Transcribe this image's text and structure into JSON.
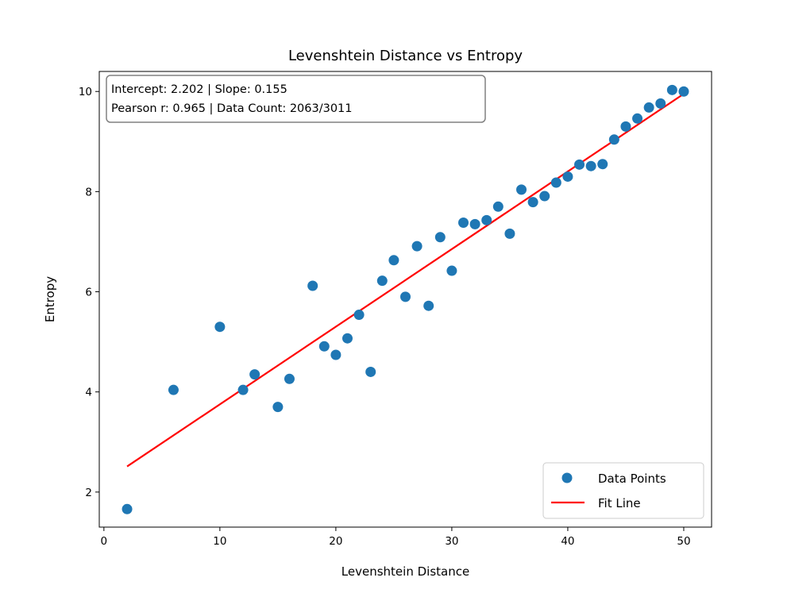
{
  "chart_data": {
    "type": "scatter",
    "title": "Levenshtein Distance vs Entropy",
    "xlabel": "Levenshtein Distance",
    "ylabel": "Entropy",
    "xlim": [
      -0.4,
      52.4
    ],
    "ylim": [
      1.3,
      10.4
    ],
    "xticks": [
      0,
      10,
      20,
      30,
      40,
      50
    ],
    "yticks": [
      2,
      4,
      6,
      8,
      10
    ],
    "grid": false,
    "legend_position": "lower-right",
    "annotation": {
      "line1": "Intercept: 2.202  |  Slope: 0.155",
      "line2": "Pearson r: 0.965  |  Data Count: 2063/3011"
    },
    "series": [
      {
        "name": "Data Points",
        "kind": "scatter",
        "color": "#1f77b4",
        "points": [
          {
            "x": 2,
            "y": 1.66
          },
          {
            "x": 6,
            "y": 4.04
          },
          {
            "x": 10,
            "y": 5.3
          },
          {
            "x": 12,
            "y": 4.04
          },
          {
            "x": 13,
            "y": 4.35
          },
          {
            "x": 15,
            "y": 3.7
          },
          {
            "x": 16,
            "y": 4.26
          },
          {
            "x": 18,
            "y": 6.12
          },
          {
            "x": 19,
            "y": 4.91
          },
          {
            "x": 20,
            "y": 4.74
          },
          {
            "x": 21,
            "y": 5.07
          },
          {
            "x": 22,
            "y": 5.54
          },
          {
            "x": 23,
            "y": 4.4
          },
          {
            "x": 24,
            "y": 6.22
          },
          {
            "x": 25,
            "y": 6.63
          },
          {
            "x": 26,
            "y": 5.9
          },
          {
            "x": 27,
            "y": 6.91
          },
          {
            "x": 28,
            "y": 5.72
          },
          {
            "x": 29,
            "y": 7.09
          },
          {
            "x": 30,
            "y": 6.42
          },
          {
            "x": 31,
            "y": 7.38
          },
          {
            "x": 32,
            "y": 7.35
          },
          {
            "x": 33,
            "y": 7.43
          },
          {
            "x": 34,
            "y": 7.7
          },
          {
            "x": 35,
            "y": 7.16
          },
          {
            "x": 36,
            "y": 8.04
          },
          {
            "x": 37,
            "y": 7.79
          },
          {
            "x": 38,
            "y": 7.91
          },
          {
            "x": 39,
            "y": 8.18
          },
          {
            "x": 40,
            "y": 8.3
          },
          {
            "x": 41,
            "y": 8.54
          },
          {
            "x": 42,
            "y": 8.51
          },
          {
            "x": 43,
            "y": 8.55
          },
          {
            "x": 44,
            "y": 9.04
          },
          {
            "x": 45,
            "y": 9.3
          },
          {
            "x": 46,
            "y": 9.46
          },
          {
            "x": 47,
            "y": 9.68
          },
          {
            "x": 48,
            "y": 9.76
          },
          {
            "x": 49,
            "y": 10.03
          },
          {
            "x": 50,
            "y": 10.0
          }
        ]
      },
      {
        "name": "Fit Line",
        "kind": "line",
        "color": "#ff0000",
        "x": [
          2,
          50
        ],
        "y": [
          2.512,
          9.952
        ]
      }
    ]
  }
}
